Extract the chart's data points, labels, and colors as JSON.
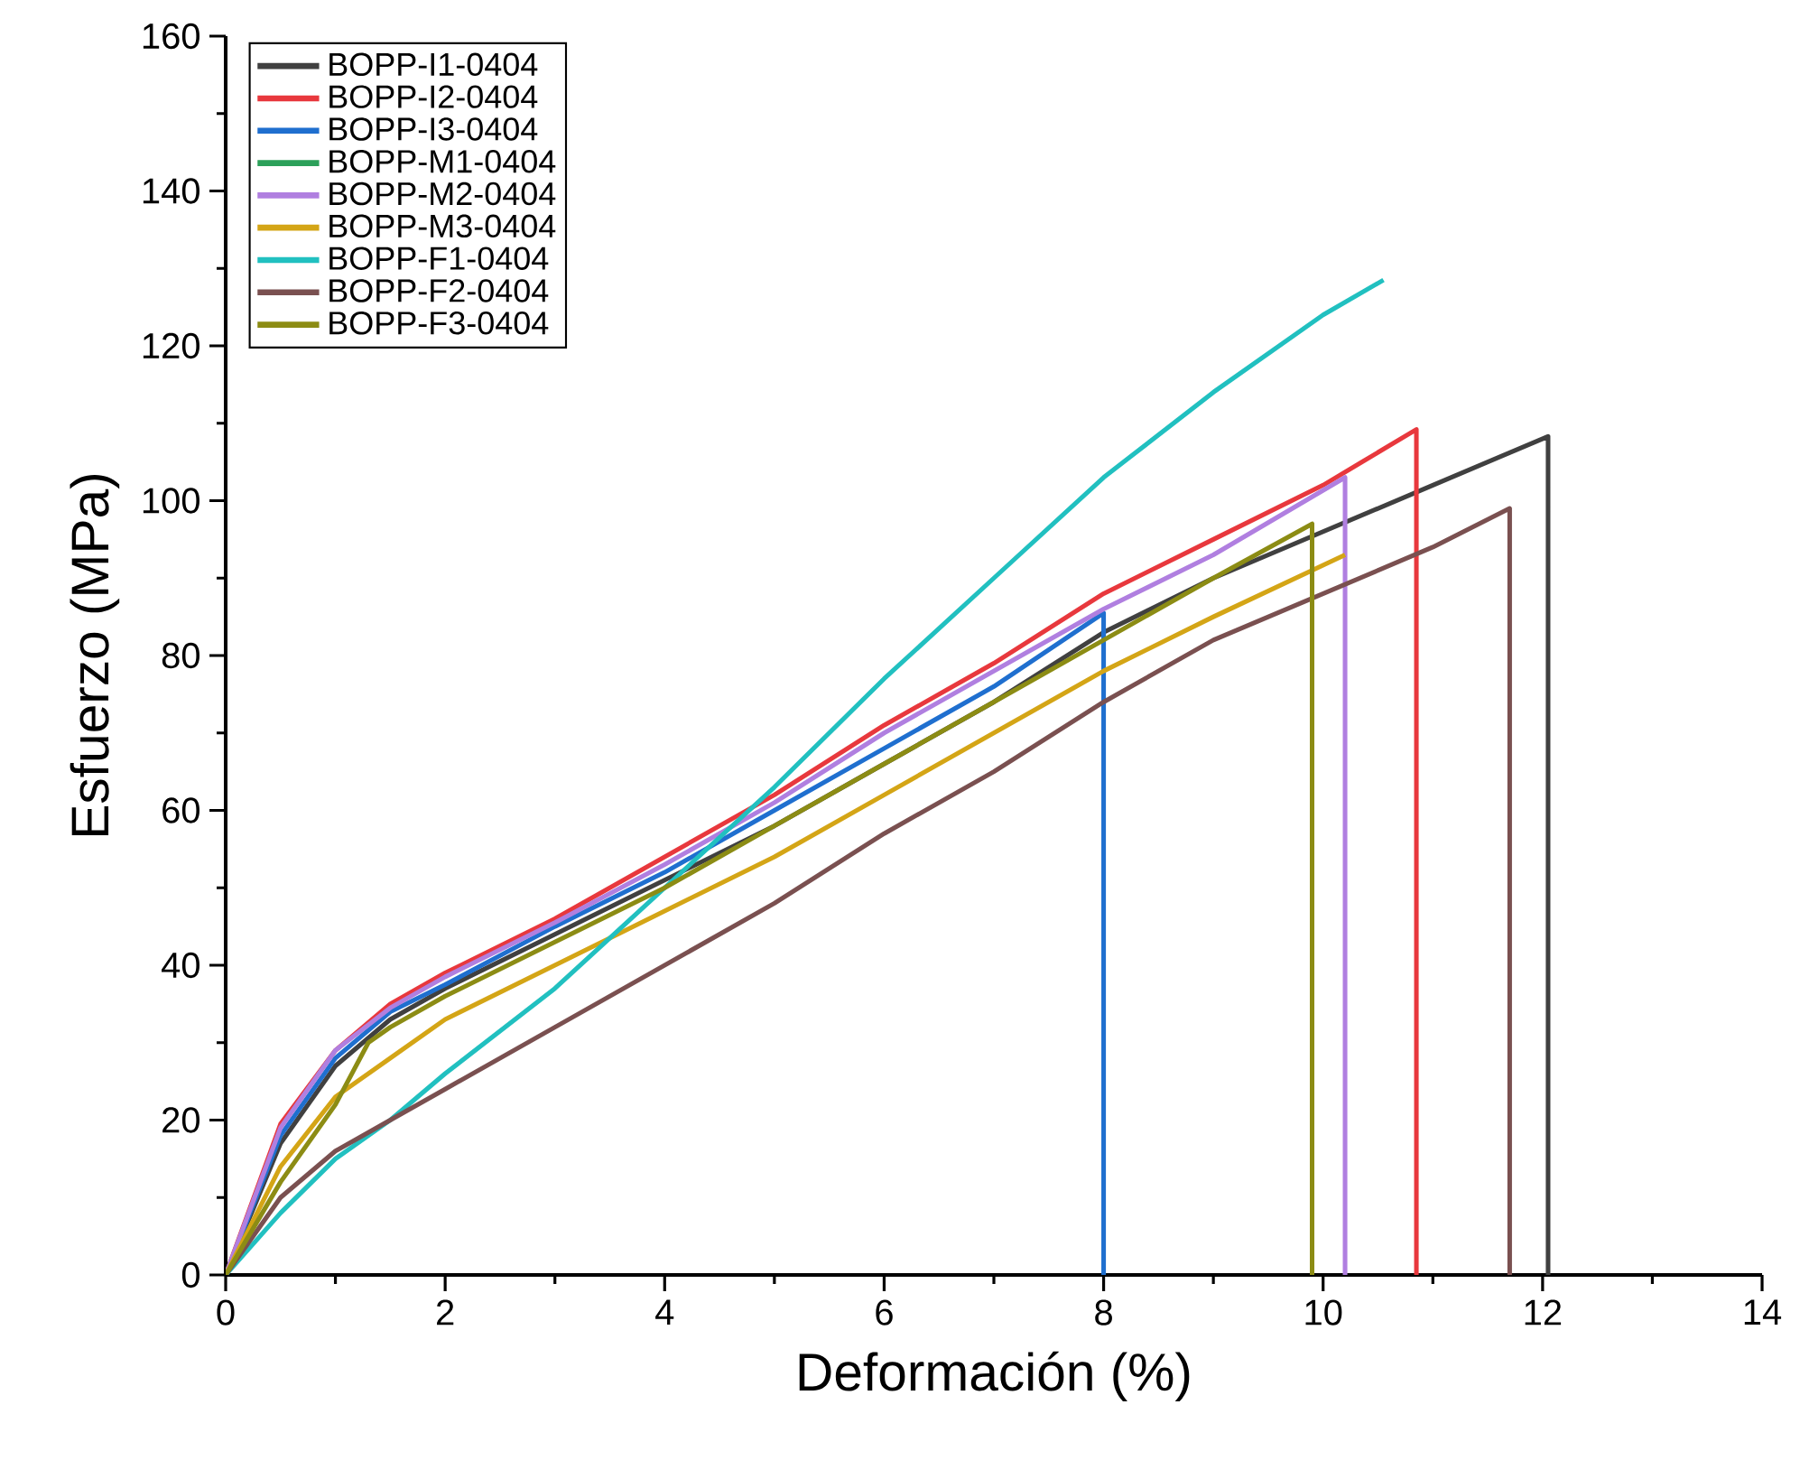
{
  "chart_data": {
    "type": "line",
    "xlabel": "Deformación (%)",
    "ylabel": "Esfuerzo (MPa)",
    "xlim": [
      0,
      14
    ],
    "ylim": [
      0,
      160
    ],
    "xticks": [
      0,
      2,
      4,
      6,
      8,
      10,
      12,
      14
    ],
    "yticks": [
      0,
      20,
      40,
      60,
      80,
      100,
      120,
      140,
      160
    ],
    "legend": "top left",
    "series": [
      {
        "name": "BOPP-I1-0404",
        "color": "#404040",
        "x": [
          0,
          0.5,
          1,
          1.5,
          2,
          3,
          4,
          5,
          6,
          7,
          8,
          9,
          10,
          11,
          12.05,
          12.05
        ],
        "values": [
          0,
          17,
          27,
          33,
          37,
          44,
          51,
          58,
          66,
          74,
          83,
          90,
          96,
          102,
          108.3,
          0
        ]
      },
      {
        "name": "BOPP-I2-0404",
        "color": "#e8383d",
        "x": [
          0,
          0.5,
          1,
          1.5,
          2,
          3,
          4,
          5,
          6,
          7,
          8,
          9,
          10,
          10.85,
          10.85
        ],
        "values": [
          0,
          19.5,
          29,
          35,
          39,
          46,
          54,
          62,
          71,
          79,
          88,
          95,
          102,
          109.2,
          0
        ]
      },
      {
        "name": "BOPP-I3-0404",
        "color": "#1f6fcf",
        "x": [
          0,
          0.5,
          1,
          1.5,
          2,
          3,
          4,
          5,
          6,
          7,
          8.0,
          8.0
        ],
        "values": [
          0,
          18,
          28,
          34,
          37.5,
          45,
          52,
          60,
          68,
          76,
          85.5,
          0
        ]
      },
      {
        "name": "BOPP-M1-0404",
        "color": "#2ca05a",
        "values": [
          null
        ]
      },
      {
        "name": "BOPP-M2-0404",
        "color": "#b07fe0",
        "x": [
          0,
          0.5,
          1,
          1.5,
          2,
          3,
          4,
          5,
          6,
          7,
          8,
          9,
          10.2,
          10.2
        ],
        "values": [
          0,
          19,
          29,
          34.5,
          38.5,
          45.5,
          53,
          61,
          70,
          78,
          86,
          93,
          103,
          0
        ]
      },
      {
        "name": "BOPP-M3-0404",
        "color": "#d4a516",
        "x": [
          0,
          0.5,
          1,
          1.5,
          2,
          3,
          4,
          5,
          6,
          7,
          8,
          9,
          10.2
        ],
        "values": [
          0,
          14,
          23,
          28,
          33,
          40,
          47,
          54,
          62,
          70,
          78,
          85,
          93
        ]
      },
      {
        "name": "BOPP-F1-0404",
        "color": "#21c0c0",
        "x": [
          0,
          0.5,
          1,
          1.5,
          2,
          3,
          4,
          5,
          6,
          7,
          8,
          9,
          10,
          10.55
        ],
        "values": [
          0,
          8,
          15,
          20,
          26,
          37,
          50,
          63,
          77,
          90,
          103,
          114,
          124,
          128.5
        ]
      },
      {
        "name": "BOPP-F2-0404",
        "color": "#7a5050",
        "x": [
          0,
          0.5,
          1,
          1.5,
          2,
          3,
          4,
          5,
          6,
          7,
          8,
          9,
          10,
          11,
          11.7,
          11.7
        ],
        "values": [
          0,
          10,
          16,
          20,
          24,
          32,
          40,
          48,
          57,
          65,
          74,
          82,
          88,
          94,
          99,
          0
        ]
      },
      {
        "name": "BOPP-F3-0404",
        "color": "#8c8c14",
        "x": [
          0,
          0.5,
          1,
          1.3,
          1.5,
          2,
          3,
          4,
          5,
          6,
          7,
          8,
          9,
          9.9,
          9.9
        ],
        "values": [
          0,
          12,
          22,
          30,
          32,
          36,
          43,
          50,
          58,
          66,
          74,
          82,
          90,
          97,
          0
        ]
      }
    ]
  }
}
